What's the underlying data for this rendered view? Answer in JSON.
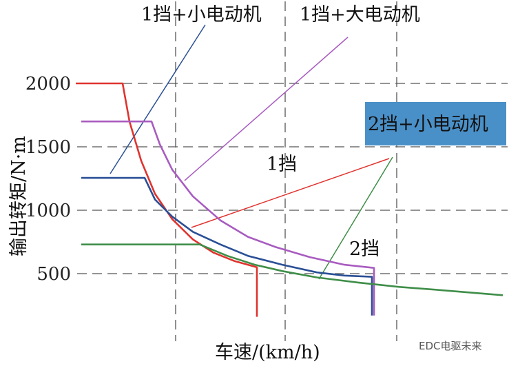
{
  "chart_data": {
    "type": "line",
    "title": "",
    "xlabel": "车速/(km/h)",
    "ylabel": "输出转矩/N·m",
    "ylim": [
      0,
      2200
    ],
    "yticks": [
      2000,
      1500,
      1000,
      500
    ],
    "ytick_labels": [
      "2000",
      "1500",
      "1000",
      "500"
    ],
    "grid": "dashed",
    "legend": "none",
    "series": [
      {
        "color": "#e0332e",
        "values": [
          [
            110,
            2000
          ],
          [
            178,
            2000
          ],
          [
            188,
            1700
          ],
          [
            205,
            1390
          ],
          [
            225,
            1130
          ],
          [
            250,
            930
          ],
          [
            280,
            770
          ],
          [
            310,
            665
          ],
          [
            340,
            600
          ],
          [
            360,
            570
          ],
          [
            373,
            550
          ],
          [
            373,
            160
          ]
        ]
      },
      {
        "color": "#a85bc0",
        "values": [
          [
            118,
            1700
          ],
          [
            220,
            1700
          ],
          [
            232,
            1520
          ],
          [
            250,
            1320
          ],
          [
            280,
            1110
          ],
          [
            320,
            920
          ],
          [
            360,
            790
          ],
          [
            400,
            710
          ],
          [
            450,
            630
          ],
          [
            500,
            570
          ],
          [
            543,
            545
          ],
          [
            543,
            170
          ]
        ]
      },
      {
        "color": "#2a4f96",
        "values": [
          [
            118,
            1255
          ],
          [
            210,
            1255
          ],
          [
            225,
            1085
          ],
          [
            250,
            950
          ],
          [
            280,
            830
          ],
          [
            320,
            730
          ],
          [
            360,
            640
          ],
          [
            410,
            570
          ],
          [
            460,
            510
          ],
          [
            500,
            485
          ],
          [
            540,
            475
          ],
          [
            540,
            170
          ]
        ]
      },
      {
        "color": "#3f8e48",
        "values": [
          [
            118,
            730
          ],
          [
            290,
            730
          ],
          [
            330,
            640
          ],
          [
            370,
            570
          ],
          [
            410,
            520
          ],
          [
            460,
            470
          ],
          [
            520,
            430
          ],
          [
            580,
            395
          ],
          [
            640,
            370
          ],
          [
            730,
            330
          ]
        ]
      }
    ],
    "annotations": [
      {
        "id": "a1",
        "text": "1挡+小电动机",
        "color": "#2a4f96"
      },
      {
        "id": "a2",
        "text": "1挡+大电动机",
        "color": "#a85bc0"
      },
      {
        "id": "a3",
        "text": "2挡+小电动机",
        "color": "#e0332e",
        "box_color": "#4a90c8"
      },
      {
        "id": "a4",
        "text": "1挡",
        "color": "#e0332e"
      },
      {
        "id": "a5",
        "text": "2挡",
        "color": "#3f8e48"
      }
    ]
  },
  "watermark": "EDC电驱未来",
  "colors": {
    "grid": "#555555",
    "red": "#e0332e",
    "purple": "#a85bc0",
    "blue": "#2a4f96",
    "green": "#3f8e48",
    "box": "#4a90c8"
  }
}
